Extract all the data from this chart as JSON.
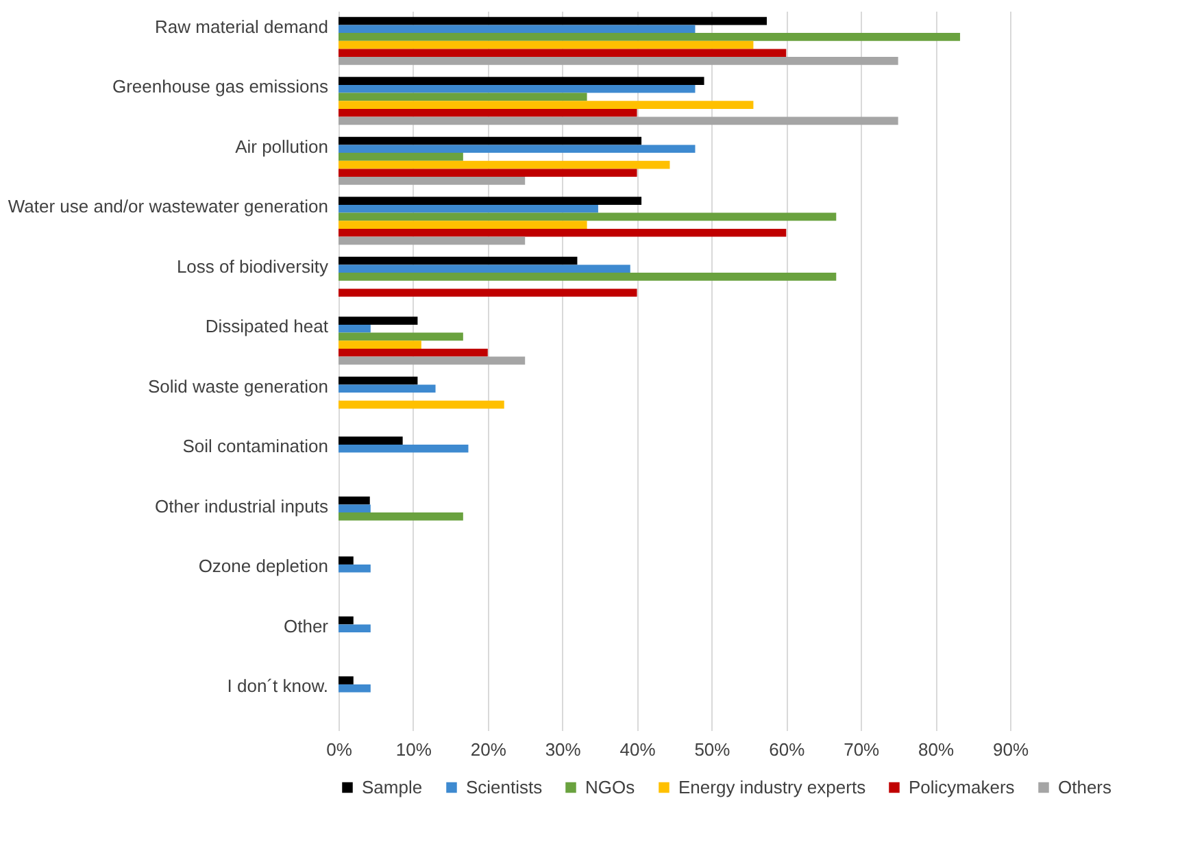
{
  "chart_data": {
    "type": "bar",
    "orientation": "horizontal",
    "categories": [
      "Raw material demand",
      "Greenhouse gas emissions",
      "Air pollution",
      "Water use and/or wastewater generation",
      "Loss of biodiversity",
      "Dissipated heat",
      "Solid waste generation",
      "Soil contamination",
      "Other industrial inputs",
      "Ozone depletion",
      "Other",
      "I don´t know."
    ],
    "series": [
      {
        "name": "Sample",
        "color": "#000000",
        "values": [
          57.4,
          49.0,
          40.6,
          40.6,
          32.0,
          10.6,
          10.6,
          8.6,
          4.2,
          2.0,
          2.0,
          2.0
        ]
      },
      {
        "name": "Scientists",
        "color": "#3e8ad0",
        "values": [
          47.8,
          47.8,
          47.8,
          34.8,
          39.1,
          4.3,
          13.0,
          17.4,
          4.3,
          4.3,
          4.3,
          4.3
        ]
      },
      {
        "name": "NGOs",
        "color": "#6aa23f",
        "values": [
          83.3,
          33.3,
          16.7,
          66.7,
          66.7,
          16.7,
          null,
          null,
          16.7,
          null,
          null,
          null
        ]
      },
      {
        "name": "Energy industry experts",
        "color": "#ffc000",
        "values": [
          55.6,
          55.6,
          44.4,
          33.3,
          null,
          11.1,
          22.2,
          null,
          null,
          null,
          null,
          null
        ]
      },
      {
        "name": "Policymakers",
        "color": "#c00000",
        "values": [
          60.0,
          40.0,
          40.0,
          60.0,
          40.0,
          20.0,
          null,
          null,
          null,
          null,
          null,
          null
        ]
      },
      {
        "name": "Others",
        "color": "#a5a5a5",
        "values": [
          75.0,
          75.0,
          25.0,
          25.0,
          null,
          25.0,
          null,
          null,
          null,
          null,
          null,
          null
        ]
      }
    ],
    "xlim": [
      0,
      90
    ],
    "xticks": [
      {
        "value": 0,
        "label": "0%"
      },
      {
        "value": 10,
        "label": "10%"
      },
      {
        "value": 20,
        "label": "20%"
      },
      {
        "value": 30,
        "label": "30%"
      },
      {
        "value": 40,
        "label": "40%"
      },
      {
        "value": 50,
        "label": "50%"
      },
      {
        "value": 60,
        "label": "60%"
      },
      {
        "value": 70,
        "label": "70%"
      },
      {
        "value": 80,
        "label": "80%"
      },
      {
        "value": 90,
        "label": "90%"
      }
    ],
    "grid": "x",
    "legend": "bottom"
  }
}
